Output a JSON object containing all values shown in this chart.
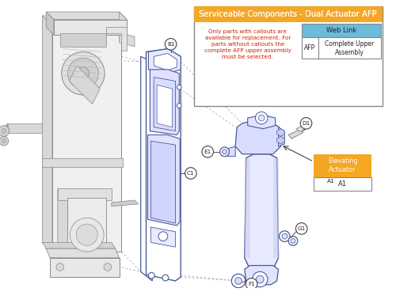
{
  "title": "Serviceable Components - Dual Actuator AFP",
  "title_bg": "#F5A623",
  "info_text": "Only parts with callouts are\navailable for replacement. For\nparts without callouts the\ncomplete AFP upper assembly\nmust be selected.",
  "info_text_color": "#CC2200",
  "web_link_label": "Web Link",
  "web_link_bg": "#6BBBDA",
  "afp_label": "AFP",
  "complete_upper": "Complete Upper\nAssembly",
  "elevating_label": "Elevating\nActuator",
  "elevating_bg": "#F5A623",
  "bg_color": "#FFFFFF",
  "part_color": "#4A5A9A",
  "mech_color": "#AAAAAA",
  "mech_dark": "#888888",
  "mech_edge": "#BBBBBB"
}
